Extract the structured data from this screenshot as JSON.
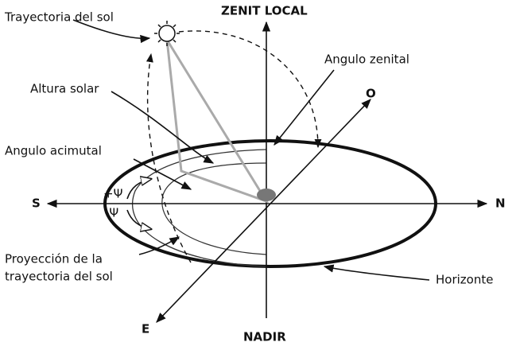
{
  "labels": {
    "sun_path": "Trayectoria del sol",
    "zenith": "ZENIT LOCAL",
    "zenith_angle": "Angulo zenital",
    "west": "O",
    "solar_altitude": "Altura solar",
    "azimuth_angle": "Angulo acimutal",
    "south": "S",
    "north": "N",
    "plus_psi": "+Ψ",
    "minus_psi": "-Ψ",
    "projection": [
      "Proyección de la",
      "trayectoria del sol"
    ],
    "horizon": "Horizonte",
    "east": "E",
    "nadir": "NADIR"
  }
}
